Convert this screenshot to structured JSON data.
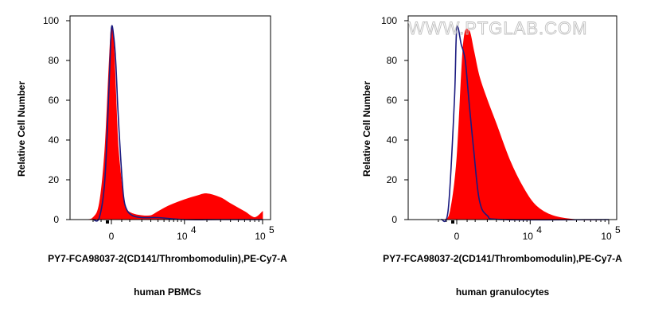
{
  "watermark": "WWW.PTGLAB.COM",
  "colors": {
    "filled": "#ff0000",
    "control": "#1a1a80",
    "axis": "#000000",
    "watermark": "#bfbfbf"
  },
  "chart_data": [
    {
      "type": "area",
      "caption": "human PBMCs",
      "xlabel": "PY7-FCA98037-2(CD141/Thrombomodulin),PE-Cy7-A",
      "ylabel": "Relative Cell Number",
      "x_scale": "biexponential",
      "x_ticks": [
        {
          "label": "0"
        },
        {
          "label": "10",
          "exp": "4"
        },
        {
          "label": "10",
          "exp": "5"
        }
      ],
      "yticks": [
        0,
        20,
        40,
        60,
        80,
        100
      ],
      "ylim": [
        0,
        100
      ],
      "series": [
        {
          "role": "stained",
          "style": "filled",
          "x": [
            "-1.5e3",
            "-1.0e3",
            "-0.6e3",
            "-0.3e3",
            "-0.1e3",
            "0",
            "0.1e3",
            "0.2e3",
            "0.3e3",
            "0.45e3",
            "0.6e3",
            "0.8e3",
            "1.2e3",
            "2e3",
            "3e3",
            "4e3",
            "6e3",
            "1e4",
            "1.5e4",
            "2e4",
            "3e4",
            "4e4",
            "6e4",
            "8e4",
            "1e5"
          ],
          "values": [
            0,
            1,
            8,
            35,
            78,
            97,
            88,
            62,
            38,
            22,
            10,
            5,
            3,
            2,
            2,
            4,
            7,
            10,
            12,
            13,
            11,
            8,
            4,
            1,
            4
          ]
        },
        {
          "role": "isotype control",
          "style": "line",
          "x": [
            "-1.0e3",
            "-0.6e3",
            "-0.3e3",
            "-0.1e3",
            "0",
            "0.1e3",
            "0.2e3",
            "0.3e3",
            "0.45e3",
            "0.6e3",
            "0.8e3",
            "1.2e3",
            "2e3",
            "4e3",
            "1e4",
            "3e4",
            "1e5"
          ],
          "values": [
            0,
            1,
            20,
            68,
            96,
            92,
            78,
            55,
            30,
            12,
            5,
            2,
            1,
            1,
            0,
            0,
            0
          ]
        }
      ]
    },
    {
      "type": "area",
      "caption": "human granulocytes",
      "xlabel": "PY7-FCA98037-2(CD141/Thrombomodulin),PE-Cy7-A",
      "ylabel": "Relative Cell Number",
      "x_scale": "biexponential",
      "x_ticks": [
        {
          "label": "0"
        },
        {
          "label": "10",
          "exp": "4"
        },
        {
          "label": "10",
          "exp": "5"
        }
      ],
      "yticks": [
        0,
        20,
        40,
        60,
        80,
        100
      ],
      "ylim": [
        0,
        100
      ],
      "series": [
        {
          "role": "stained",
          "style": "filled",
          "x": [
            "-0.6e3",
            "-0.3e3",
            "0",
            "0.3e3",
            "0.6e3",
            "0.9e3",
            "1.3e3",
            "2e3",
            "3e3",
            "5e3",
            "8e3",
            "1.2e4",
            "2e4",
            "4e4",
            "1e5"
          ],
          "values": [
            0,
            4,
            30,
            88,
            95,
            85,
            72,
            60,
            48,
            30,
            16,
            7,
            2,
            0,
            0
          ]
        },
        {
          "role": "isotype control",
          "style": "line",
          "x": [
            "-0.8e3",
            "-0.4e3",
            "-0.1e3",
            "0",
            "0.2e3",
            "0.4e3",
            "0.6e3",
            "0.9e3",
            "1.3e3",
            "2e3",
            "4e3",
            "1e5"
          ],
          "values": [
            0,
            5,
            60,
            96,
            88,
            80,
            60,
            35,
            10,
            2,
            0,
            0
          ]
        }
      ]
    }
  ]
}
